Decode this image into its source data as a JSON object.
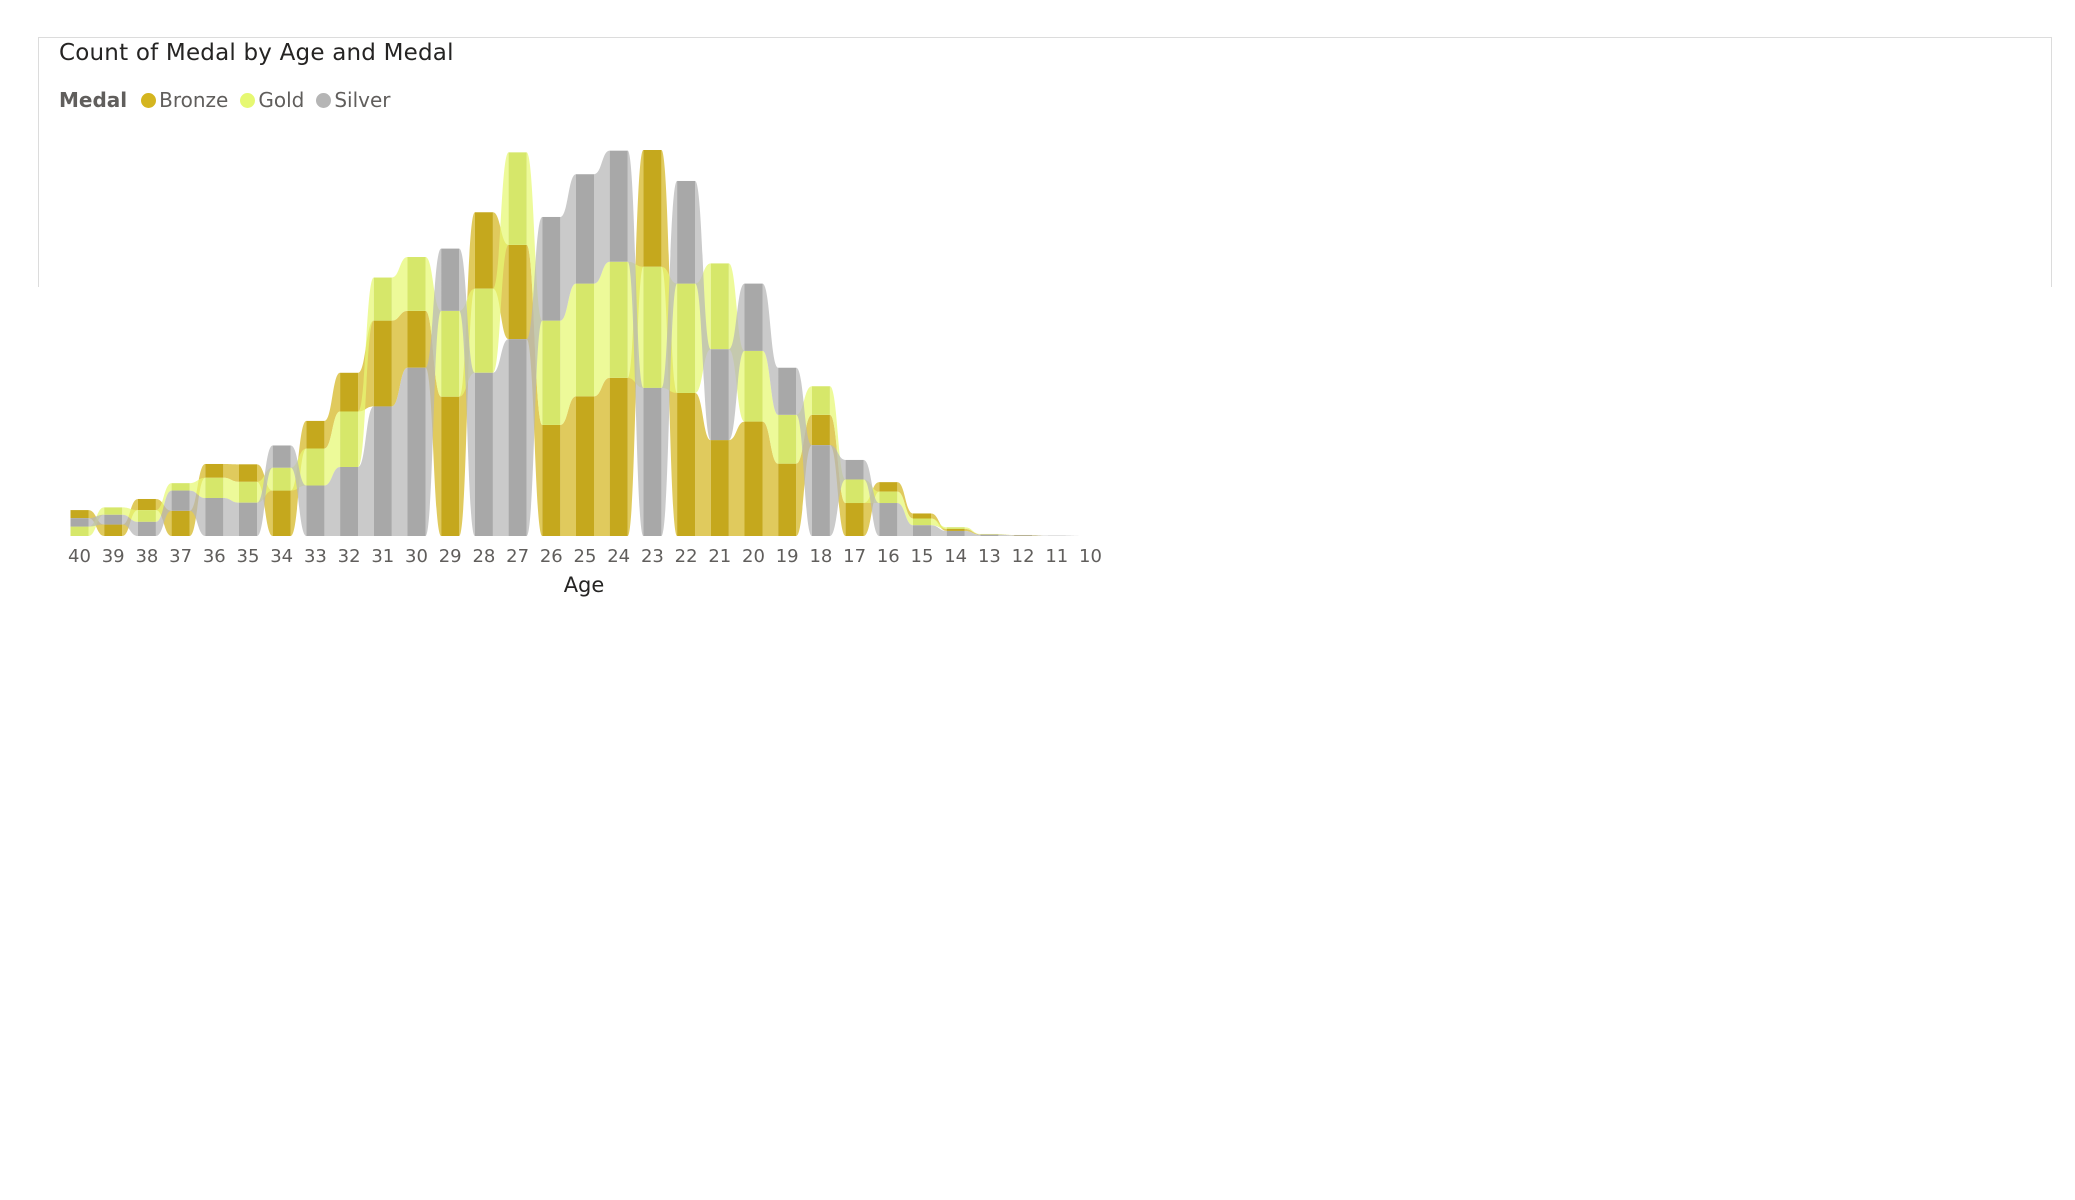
{
  "chart_data": {
    "type": "ribbon",
    "title": "Count of Medal by Age and Medal",
    "legend_title": "Medal",
    "legend_position": "top-left",
    "xlabel": "Age",
    "ylabel": "",
    "categories": [
      "40",
      "39",
      "38",
      "37",
      "36",
      "35",
      "34",
      "33",
      "32",
      "31",
      "30",
      "29",
      "28",
      "27",
      "26",
      "25",
      "24",
      "23",
      "22",
      "21",
      "20",
      "19",
      "18",
      "17",
      "16",
      "15",
      "14",
      "13",
      "12",
      "11",
      "10"
    ],
    "series": [
      {
        "name": "Bronze",
        "color": "#d4b51f",
        "values": [
          24,
          34,
          33,
          75,
          41,
          52,
          135,
          82,
          115,
          255,
          169,
          414,
          227,
          280,
          330,
          415,
          470,
          347,
          425,
          285,
          340,
          215,
          90,
          98,
          28,
          15,
          6,
          1,
          1,
          0,
          0
        ]
      },
      {
        "name": "Gold",
        "color": "#e6f872",
        "values": [
          28,
          22,
          35,
          22,
          60,
          62,
          68,
          110,
          165,
          128,
          160,
          255,
          250,
          275,
          310,
          335,
          345,
          360,
          325,
          255,
          210,
          145,
          85,
          70,
          34,
          20,
          5,
          1,
          0,
          0,
          0
        ]
      },
      {
        "name": "Silver",
        "color": "#b5b5b5",
        "values": [
          25,
          29,
          42,
          60,
          113,
          99,
          66,
          150,
          205,
          385,
          500,
          185,
          485,
          585,
          308,
          325,
          330,
          440,
          305,
          270,
          200,
          140,
          270,
          58,
          98,
          32,
          15,
          4,
          2,
          1,
          0
        ]
      }
    ]
  }
}
